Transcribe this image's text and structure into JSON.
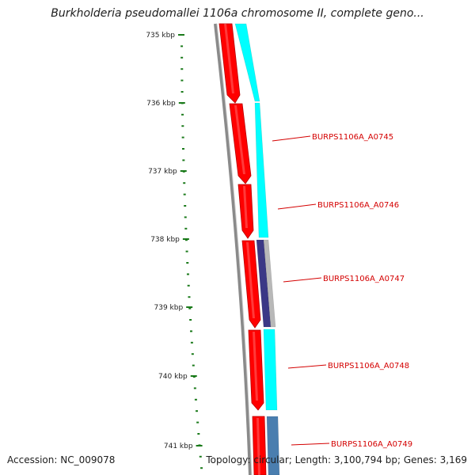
{
  "map": {
    "title": "Burkholderia pseudomallei 1106a chromosome II, complete geno...",
    "accession_text": "Accession: NC_009078",
    "stats_text": "Topology: circular; Length: 3,100,794 bp; Genes: 3,169",
    "ruler_ticks": [
      "735 kbp",
      "736 kbp",
      "737 kbp",
      "738 kbp",
      "739 kbp",
      "740 kbp",
      "741 kbp"
    ],
    "gene_labels": [
      "BURPS1106A_A0745",
      "BURPS1106A_A0746",
      "BURPS1106A_A0747",
      "BURPS1106A_A0748",
      "BURPS1106A_A0749"
    ],
    "colors": {
      "forward_cds": "#ff0000",
      "reverse_track_cyan": "#00ffff",
      "reverse_track_purple": "#3b3886",
      "reverse_track_grey": "#b8b8b8",
      "reverse_track_blue": "#4a7eaf",
      "backbone": "#8a8a8a",
      "tick_marks": "#1a7a1a",
      "label_red": "#d40000"
    }
  }
}
